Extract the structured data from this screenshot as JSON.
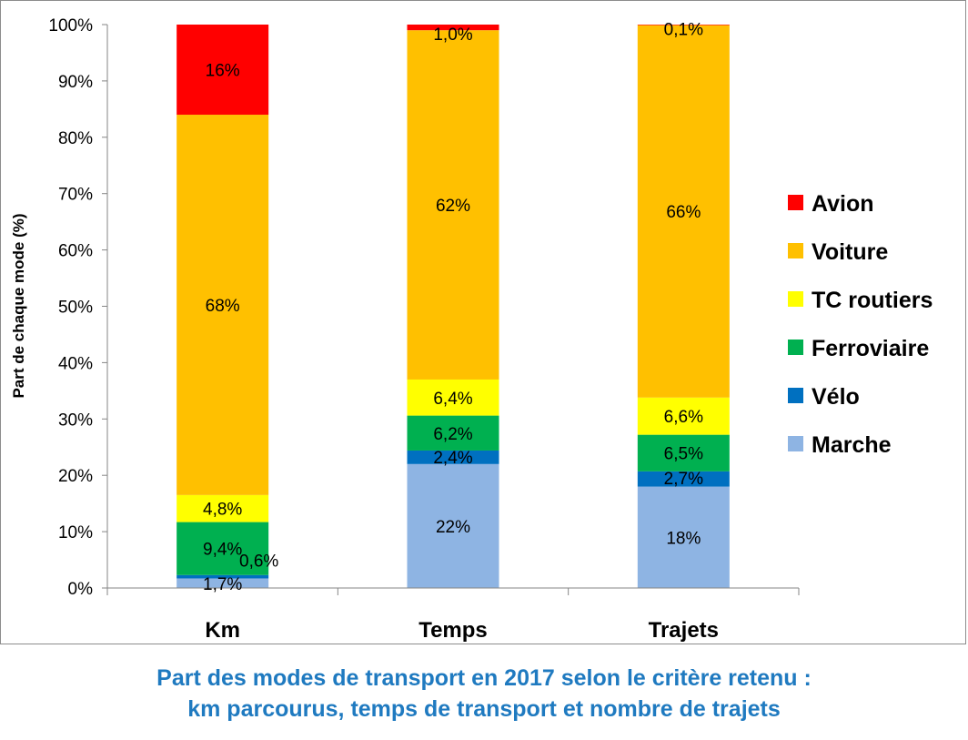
{
  "chart_data": {
    "type": "bar",
    "stacked": true,
    "ylabel": "Part de chaque mode (%)",
    "ylim": [
      0,
      100
    ],
    "yticks": [
      "0%",
      "10%",
      "20%",
      "30%",
      "40%",
      "50%",
      "60%",
      "70%",
      "80%",
      "90%",
      "100%"
    ],
    "categories": [
      "Km",
      "Temps",
      "Trajets"
    ],
    "legend_position": "right",
    "series": [
      {
        "name": "Marche",
        "color": "#8eb4e3",
        "values": [
          1.7,
          22,
          18
        ],
        "labels": [
          "1,7%",
          "22%",
          "18%"
        ]
      },
      {
        "name": "Vélo",
        "color": "#0070c0",
        "values": [
          0.6,
          2.4,
          2.7
        ],
        "labels": [
          "0,6%",
          "2,4%",
          "2,7%"
        ]
      },
      {
        "name": "Ferroviaire",
        "color": "#00b050",
        "values": [
          9.4,
          6.2,
          6.5
        ],
        "labels": [
          "9,4%",
          "6,2%",
          "6,5%"
        ]
      },
      {
        "name": "TC routiers",
        "color": "#ffff00",
        "values": [
          4.8,
          6.4,
          6.6
        ],
        "labels": [
          "4,8%",
          "6,4%",
          "6,6%"
        ]
      },
      {
        "name": "Voiture",
        "color": "#ffc000",
        "values": [
          67.5,
          62,
          66.1
        ],
        "labels": [
          "68%",
          "62%",
          "66%"
        ]
      },
      {
        "name": "Avion",
        "color": "#ff0000",
        "values": [
          16,
          1.0,
          0.1
        ],
        "labels": [
          "16%",
          "1,0%",
          "0,1%"
        ]
      }
    ]
  },
  "caption": {
    "line1": "Part des modes de transport en 2017 selon le critère retenu :",
    "line2": "km parcourus, temps de transport et nombre de trajets"
  }
}
